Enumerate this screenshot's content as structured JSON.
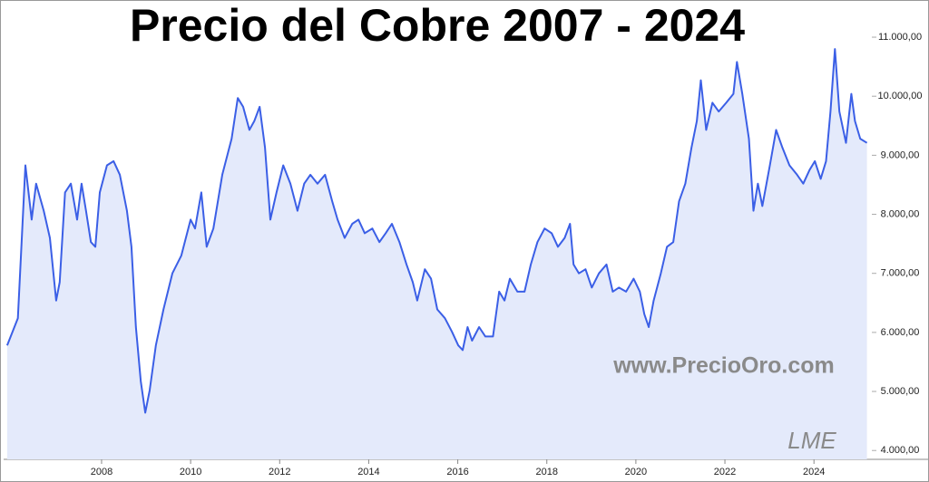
{
  "chart_data": {
    "type": "line",
    "title": "Precio del Cobre 2007 - 2024",
    "annotations": [
      "www.PrecioOro.com",
      "LME"
    ],
    "color": "#3b5fe6",
    "fill": "#e4eafb",
    "x": [
      2005.88,
      2006.12,
      2006.29,
      2006.43,
      2006.53,
      2006.7,
      2006.84,
      2006.98,
      2007.06,
      2007.18,
      2007.31,
      2007.45,
      2007.55,
      2007.65,
      2007.76,
      2007.86,
      2007.96,
      2008.12,
      2008.27,
      2008.41,
      2008.57,
      2008.67,
      2008.77,
      2008.88,
      2008.98,
      2009.08,
      2009.22,
      2009.39,
      2009.59,
      2009.79,
      2010.0,
      2010.1,
      2010.24,
      2010.36,
      2010.51,
      2010.71,
      2010.92,
      2011.06,
      2011.18,
      2011.32,
      2011.43,
      2011.55,
      2011.67,
      2011.79,
      2011.93,
      2012.08,
      2012.24,
      2012.4,
      2012.55,
      2012.69,
      2012.85,
      2013.02,
      2013.18,
      2013.3,
      2013.46,
      2013.63,
      2013.77,
      2013.91,
      2014.08,
      2014.24,
      2014.38,
      2014.52,
      2014.69,
      2014.85,
      2014.99,
      2015.09,
      2015.26,
      2015.4,
      2015.54,
      2015.71,
      2015.87,
      2016.01,
      2016.11,
      2016.22,
      2016.32,
      2016.48,
      2016.62,
      2016.79,
      2016.93,
      2017.05,
      2017.17,
      2017.34,
      2017.5,
      2017.64,
      2017.79,
      2017.95,
      2018.11,
      2018.25,
      2018.4,
      2018.52,
      2018.6,
      2018.72,
      2018.87,
      2019.01,
      2019.17,
      2019.34,
      2019.48,
      2019.62,
      2019.78,
      2019.95,
      2020.09,
      2020.19,
      2020.29,
      2020.4,
      2020.56,
      2020.7,
      2020.84,
      2020.97,
      2021.11,
      2021.25,
      2021.37,
      2021.46,
      2021.58,
      2021.72,
      2021.86,
      2022.03,
      2022.19,
      2022.27,
      2022.39,
      2022.54,
      2022.64,
      2022.74,
      2022.84,
      2023.01,
      2023.15,
      2023.29,
      2023.45,
      2023.62,
      2023.76,
      2023.9,
      2024.02,
      2024.15,
      2024.27,
      2024.37,
      2024.47,
      2024.57,
      2024.72,
      2024.84,
      2024.92,
      2025.04,
      2025.19
    ],
    "values": [
      5780,
      6240,
      8830,
      7910,
      8520,
      8060,
      7600,
      6540,
      6850,
      8370,
      8520,
      7910,
      8520,
      8060,
      7530,
      7450,
      8370,
      8830,
      8900,
      8670,
      8060,
      7450,
      6090,
      5170,
      4640,
      5020,
      5780,
      6390,
      7000,
      7300,
      7910,
      7760,
      8370,
      7450,
      7760,
      8670,
      9280,
      9970,
      9820,
      9430,
      9580,
      9820,
      9130,
      7910,
      8370,
      8830,
      8520,
      8060,
      8520,
      8670,
      8520,
      8670,
      8220,
      7910,
      7600,
      7840,
      7910,
      7680,
      7760,
      7530,
      7680,
      7840,
      7530,
      7150,
      6850,
      6540,
      7070,
      6910,
      6390,
      6240,
      6010,
      5780,
      5700,
      6090,
      5860,
      6090,
      5930,
      5930,
      6690,
      6540,
      6910,
      6690,
      6690,
      7150,
      7530,
      7760,
      7680,
      7450,
      7600,
      7840,
      7150,
      7000,
      7070,
      6760,
      7000,
      7150,
      6690,
      6760,
      6690,
      6910,
      6690,
      6310,
      6090,
      6540,
      7000,
      7450,
      7530,
      8220,
      8520,
      9130,
      9580,
      10270,
      9430,
      9890,
      9740,
      9890,
      10040,
      10580,
      10040,
      9280,
      8060,
      8520,
      8140,
      8830,
      9430,
      9130,
      8830,
      8670,
      8520,
      8750,
      8900,
      8600,
      8900,
      9740,
      10800,
      9740,
      9210,
      10040,
      9580,
      9280,
      9210
    ],
    "xlim": [
      2005.8,
      2025.3
    ],
    "xticks": [
      2008,
      2010,
      2012,
      2014,
      2016,
      2018,
      2020,
      2022,
      2024
    ],
    "ylim": [
      3850,
      11200
    ],
    "yticks": [
      {
        "value": 4000,
        "label": "4.000,00"
      },
      {
        "value": 5000,
        "label": "5.000,00"
      },
      {
        "value": 6000,
        "label": "6.000,00"
      },
      {
        "value": 7000,
        "label": "7.000,00"
      },
      {
        "value": 8000,
        "label": "8.000,00"
      },
      {
        "value": 9000,
        "label": "9.000,00"
      },
      {
        "value": 10000,
        "label": "10.000,00"
      },
      {
        "value": 11000,
        "label": "11.000,00"
      }
    ]
  }
}
